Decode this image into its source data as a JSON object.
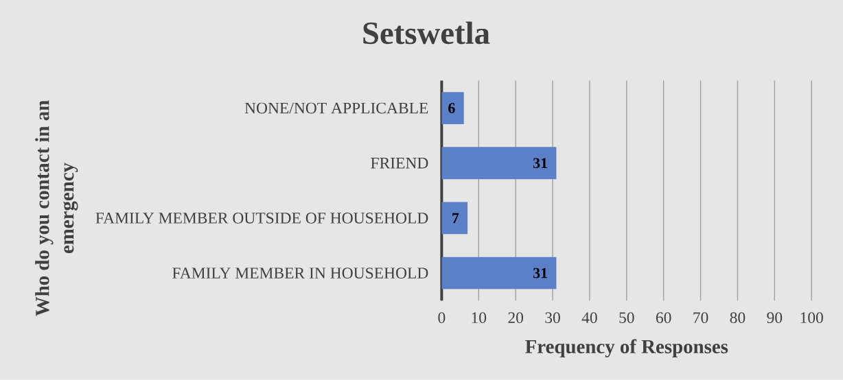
{
  "chart_data": {
    "type": "bar",
    "orientation": "horizontal",
    "title": "Setswetla",
    "xlabel": "Frequency of Responses",
    "ylabel": "Who do you contact in an emergency",
    "categories": [
      "NONE/NOT APPLICABLE",
      "FRIEND",
      "FAMILY MEMBER OUTSIDE OF HOUSEHOLD",
      "FAMILY MEMBER IN HOUSEHOLD"
    ],
    "values": [
      6,
      31,
      7,
      31
    ],
    "color": "#5b80c8",
    "xlim": [
      0,
      100
    ],
    "xticks": [
      0,
      10,
      20,
      30,
      40,
      50,
      60,
      70,
      80,
      90,
      100
    ],
    "grid": "x",
    "data_labels": true
  }
}
